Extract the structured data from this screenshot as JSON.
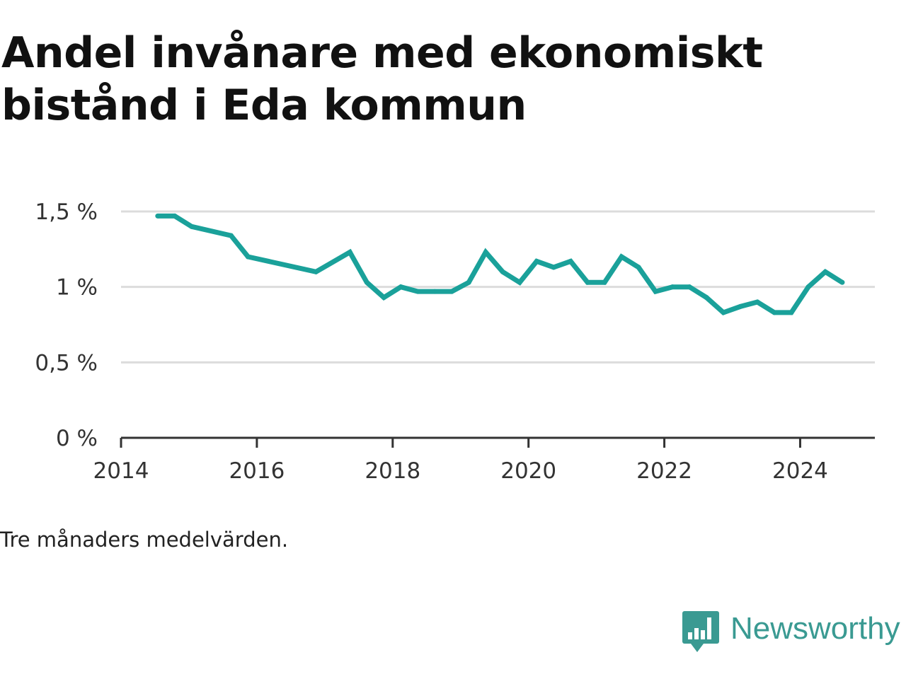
{
  "title": "Andel invånare med ekonomiskt bistånd i Eda kommun",
  "note": "Tre månaders medelvärden.",
  "brand": {
    "name": "Newsworthy",
    "icon": "newsworthy-logo-icon",
    "color": "#3a9a92"
  },
  "chart_data": {
    "type": "line",
    "title": "Andel invånare med ekonomiskt bistånd i Eda kommun",
    "xlabel": "",
    "ylabel": "",
    "xlim": [
      2014,
      2025.1
    ],
    "ylim": [
      0,
      1.5
    ],
    "x_ticks": [
      {
        "value": 2014,
        "label": "2014"
      },
      {
        "value": 2016,
        "label": "2016"
      },
      {
        "value": 2018,
        "label": "2018"
      },
      {
        "value": 2020,
        "label": "2020"
      },
      {
        "value": 2022,
        "label": "2022"
      },
      {
        "value": 2024,
        "label": "2024"
      }
    ],
    "y_ticks": [
      {
        "value": 0,
        "label": "0 %"
      },
      {
        "value": 0.5,
        "label": "0,5 %"
      },
      {
        "value": 1,
        "label": "1 %"
      },
      {
        "value": 1.5,
        "label": "1,5 %"
      }
    ],
    "grid": true,
    "line_color": "#1aa19a",
    "series": [
      {
        "x": [
          2014.54,
          2014.79,
          2015.04,
          2015.62,
          2015.87,
          2016.87,
          2017.37,
          2017.62,
          2017.87,
          2018.12,
          2018.37,
          2018.62,
          2018.87,
          2019.12,
          2019.37,
          2019.62,
          2019.87,
          2020.12,
          2020.37,
          2020.62,
          2020.87,
          2021.12,
          2021.37,
          2021.62,
          2021.87,
          2022.12,
          2022.37,
          2022.62,
          2022.87,
          2023.12,
          2023.37,
          2023.62,
          2023.87,
          2024.12,
          2024.37,
          2024.62
        ],
        "values": [
          1.47,
          1.47,
          1.4,
          1.34,
          1.2,
          1.1,
          1.23,
          1.03,
          0.93,
          1.0,
          0.97,
          0.97,
          0.97,
          1.03,
          1.23,
          1.1,
          1.03,
          1.17,
          1.13,
          1.17,
          1.03,
          1.03,
          1.2,
          1.13,
          0.97,
          1.0,
          1.0,
          0.93,
          0.83,
          0.87,
          0.9,
          0.83,
          0.83,
          1.0,
          1.1,
          1.03
        ]
      }
    ]
  }
}
